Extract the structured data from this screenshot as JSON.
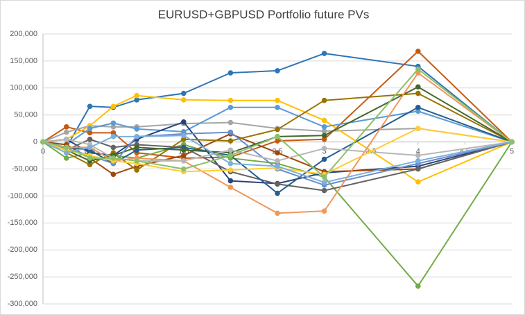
{
  "chart_data": {
    "type": "line",
    "title": "EURUSD+GBPUSD Portfolio future PVs",
    "x": [
      0,
      0.25,
      0.5,
      0.75,
      1,
      1.5,
      2,
      2.5,
      3,
      4,
      5
    ],
    "xlim": [
      0,
      5
    ],
    "xticks": [
      0,
      0.5,
      1,
      1.5,
      2,
      2.5,
      3,
      3.5,
      4,
      4.5,
      5
    ],
    "ylim": [
      -300000,
      200000
    ],
    "yticks": [
      {
        "value": -300000,
        "label": "-300,000"
      },
      {
        "value": -250000,
        "label": "-250,000"
      },
      {
        "value": -200000,
        "label": "-200,000"
      },
      {
        "value": -150000,
        "label": "-150,000"
      },
      {
        "value": -100000,
        "label": "-100,000"
      },
      {
        "value": -50000,
        "label": "-50,000"
      },
      0,
      {
        "value": 50000,
        "label": "50,000"
      },
      {
        "value": 100000,
        "label": "100,000"
      },
      {
        "value": 150000,
        "label": "150,000"
      },
      {
        "value": 200000,
        "label": "200,000"
      }
    ],
    "grid": true,
    "series": [
      {
        "color": "#2E75B6",
        "values": [
          0,
          -10000,
          66000,
          64000,
          78000,
          90000,
          128000,
          132000,
          164000,
          140000,
          0
        ]
      },
      {
        "color": "#C55A11",
        "values": [
          0,
          28000,
          17000,
          17000,
          -20000,
          -30000,
          -28000,
          2000,
          5000,
          168000,
          0
        ]
      },
      {
        "color": "#A5A5A5",
        "values": [
          0,
          18000,
          30000,
          28000,
          28000,
          34000,
          36000,
          25000,
          20000,
          25000,
          0
        ]
      },
      {
        "color": "#FFC000",
        "values": [
          0,
          5000,
          30000,
          66000,
          86000,
          78000,
          77000,
          77000,
          40000,
          -74000,
          0
        ]
      },
      {
        "color": "#5B9BD5",
        "values": [
          0,
          -5000,
          25000,
          35000,
          24000,
          19000,
          64000,
          64000,
          28000,
          57000,
          0
        ]
      },
      {
        "color": "#70AD47",
        "values": [
          0,
          -30000,
          -20000,
          -25000,
          -30000,
          -5000,
          -30000,
          -40000,
          -65000,
          -267000,
          0
        ]
      },
      {
        "color": "#264478",
        "values": [
          0,
          5000,
          -20000,
          -25000,
          5000,
          37000,
          -72000,
          -77000,
          -57000,
          -45000,
          0
        ]
      },
      {
        "color": "#9E480E",
        "values": [
          0,
          -5000,
          -30000,
          -60000,
          -45000,
          -25000,
          15000,
          -20000,
          -55000,
          -50000,
          0
        ]
      },
      {
        "color": "#636363",
        "values": [
          0,
          -15000,
          5000,
          -10000,
          -5000,
          -10000,
          -55000,
          -78000,
          -90000,
          -50000,
          0
        ]
      },
      {
        "color": "#997300",
        "values": [
          0,
          -20000,
          -42000,
          -20000,
          -52000,
          5000,
          2000,
          23000,
          77000,
          90000,
          0
        ]
      },
      {
        "color": "#255E91",
        "values": [
          0,
          -10000,
          -15000,
          -40000,
          -15000,
          -10000,
          -25000,
          -95000,
          -32000,
          64000,
          0
        ]
      },
      {
        "color": "#43682B",
        "values": [
          0,
          -15000,
          -35000,
          -25000,
          -10000,
          -15000,
          -20000,
          10000,
          12000,
          102000,
          0
        ]
      },
      {
        "color": "#698ED0",
        "values": [
          0,
          -12000,
          -25000,
          -40000,
          10000,
          15000,
          18000,
          -50000,
          -80000,
          -40000,
          0
        ]
      },
      {
        "color": "#F1975A",
        "values": [
          0,
          -10000,
          -10000,
          -35000,
          -30000,
          -35000,
          -84000,
          -132000,
          -128000,
          128000,
          0
        ]
      },
      {
        "color": "#B7B7B7",
        "values": [
          0,
          5000,
          -5000,
          -30000,
          -35000,
          -35000,
          -15000,
          -35000,
          -12000,
          -25000,
          0
        ]
      },
      {
        "color": "#FFCD33",
        "values": [
          0,
          -15000,
          -25000,
          -35000,
          -40000,
          -55000,
          -52000,
          -48000,
          -60000,
          25000,
          0
        ]
      },
      {
        "color": "#7CAFDD",
        "values": [
          0,
          -20000,
          -10000,
          10000,
          10000,
          12000,
          -40000,
          -45000,
          -75000,
          -35000,
          0
        ]
      },
      {
        "color": "#8CC168",
        "values": [
          0,
          -10000,
          -30000,
          -30000,
          -35000,
          -50000,
          -25000,
          10000,
          -65000,
          135000,
          0
        ]
      }
    ]
  }
}
